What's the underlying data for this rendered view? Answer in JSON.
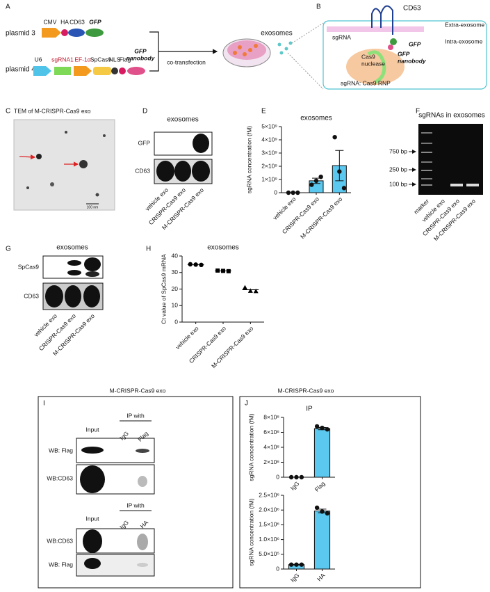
{
  "panels": {
    "A": {
      "label": "A",
      "plasmid3": "plasmid 3",
      "plasmid4": "plasmid 4",
      "p3_parts": [
        "CMV",
        "HA",
        "CD63",
        "GFP"
      ],
      "p4_parts": [
        "U6",
        "sgRNA1",
        "EF-1α",
        "SpCas9",
        "NLS",
        "Flag"
      ],
      "p4_nanobody": [
        "GFP",
        "nanobody"
      ],
      "cotransfection": "co-transfection",
      "exosomes": "exosomes"
    },
    "B": {
      "label": "B",
      "cd63": "CD63",
      "extra": "Extra-exosome",
      "intra": "Intra-exosome",
      "sgrna": "sgRNA",
      "cas9": [
        "Cas9",
        "nuclease"
      ],
      "gfp": "GFP",
      "nanobody": [
        "GFP",
        "nanobody"
      ],
      "rnp": "sgRNA: Cas9 RNP"
    },
    "C": {
      "label": "C",
      "title": "TEM of M-CRISPR-Cas9 exo",
      "scale": "100 nm"
    },
    "D": {
      "label": "D",
      "title": "exosomes",
      "rows": [
        "GFP",
        "CD63"
      ],
      "lanes": [
        "vehicle exo",
        "CRISPR-Cas9 exo",
        "M-CRISPR-Cas9 exo"
      ]
    },
    "E": {
      "label": "E"
    },
    "F": {
      "label": "F",
      "title": "sgRNAs in exosomes",
      "markers": [
        "750 bp",
        "250 bp",
        "100 bp"
      ],
      "lanes": [
        "marker",
        "vehicle exo",
        "CRISPR-Cas9 exo",
        "M-CRISPR-Cas9 exo"
      ]
    },
    "G": {
      "label": "G",
      "title": "exosomes",
      "rows": [
        "SpCas9",
        "CD63"
      ],
      "lanes": [
        "vehicle exo",
        "CRISPR-Cas9 exo",
        "M-CRISPR-Cas9 exo"
      ]
    },
    "H": {
      "label": "H"
    },
    "I": {
      "label": "I",
      "title": "M-CRISPR-Cas9 exo",
      "blots": [
        {
          "input": "Input",
          "ip": "IP with",
          "lanes": [
            "IgG",
            "Flag"
          ],
          "rows": [
            "WB: Flag",
            "WB:CD63"
          ]
        },
        {
          "input": "Input",
          "ip": "IP with",
          "lanes": [
            "IgG",
            "HA"
          ],
          "rows": [
            "WB:CD63",
            "WB: Flag"
          ]
        }
      ]
    },
    "J": {
      "label": "J",
      "title": "M-CRISPR-Cas9 exo"
    }
  },
  "chart_data": [
    {
      "type": "bar",
      "title": "exosomes",
      "ylabel": "sgRNA concentration (fM)",
      "categories": [
        "vehicle exo",
        "CRISPR-Cas9 exo",
        "M-CRISPR-Cas9 exo"
      ],
      "values": [
        0,
        900000000,
        2050000000
      ],
      "errors": [
        0,
        200000000,
        1150000000
      ],
      "points": [
        [
          0,
          0,
          0
        ],
        [
          600000000,
          900000000,
          1200000000
        ],
        [
          4200000000,
          1600000000,
          350000000
        ]
      ],
      "color": "#5bc8ef",
      "ylim": [
        0,
        5000000000
      ],
      "yticks": [
        0,
        {
          "value": 1000000000,
          "label": "1×10⁹"
        },
        {
          "value": 2000000000,
          "label": "2×10⁹"
        },
        {
          "value": 3000000000,
          "label": "3×10⁹"
        },
        {
          "value": 4000000000,
          "label": "4×10⁹"
        },
        {
          "value": 5000000000,
          "label": "5×10⁹"
        }
      ]
    },
    {
      "type": "scatter",
      "title": "exosomes",
      "ylabel": "Ct value of SpCas9 mRNA",
      "categories": [
        "vehicle exo",
        "CRISPR-Cas9 exo",
        "M-CRISPR-Cas9 exo"
      ],
      "values": [
        34.8,
        31,
        19.6
      ],
      "points": [
        [
          35,
          34.8,
          34.6
        ],
        [
          31.2,
          31,
          30.8
        ],
        [
          21,
          19,
          18.8
        ]
      ],
      "markers": [
        "circle",
        "square",
        "triangle"
      ],
      "color": "#000000",
      "ylim": [
        0,
        40
      ],
      "yticks": [
        0,
        10,
        20,
        30,
        40
      ]
    },
    {
      "type": "bar",
      "title": "IP",
      "ylabel": "sgRNA concentration (fM)",
      "categories": [
        "IgG",
        "Flag"
      ],
      "values": [
        0,
        650000000
      ],
      "errors": [
        0,
        15000000
      ],
      "points": [
        [
          0,
          0,
          0
        ],
        [
          680000000,
          660000000,
          640000000
        ]
      ],
      "color": "#5bc8ef",
      "ylim": [
        0,
        800000000
      ],
      "yticks": [
        0,
        {
          "value": 200000000,
          "label": "2×10⁸"
        },
        {
          "value": 400000000,
          "label": "4×10⁸"
        },
        {
          "value": 600000000,
          "label": "6×10⁸"
        },
        {
          "value": 800000000,
          "label": "8×10⁸"
        }
      ]
    },
    {
      "type": "bar",
      "ylabel": "sgRNA concentration (fM)",
      "categories": [
        "IgG",
        "HA"
      ],
      "values": [
        150000,
        1970000
      ],
      "errors": [
        10000,
        60000
      ],
      "points": [
        [
          150000,
          150000,
          150000
        ],
        [
          2080000,
          1950000,
          1890000
        ]
      ],
      "color": "#5bc8ef",
      "ylim": [
        0,
        2500000
      ],
      "yticks": [
        0,
        {
          "value": 500000,
          "label": "5.0×10⁵"
        },
        {
          "value": 1000000,
          "label": "1.0×10⁶"
        },
        {
          "value": 1500000,
          "label": "1.5×10⁶"
        },
        {
          "value": 2000000,
          "label": "2.0×10⁶"
        },
        {
          "value": 2500000,
          "label": "2.5×10⁶"
        }
      ]
    }
  ]
}
